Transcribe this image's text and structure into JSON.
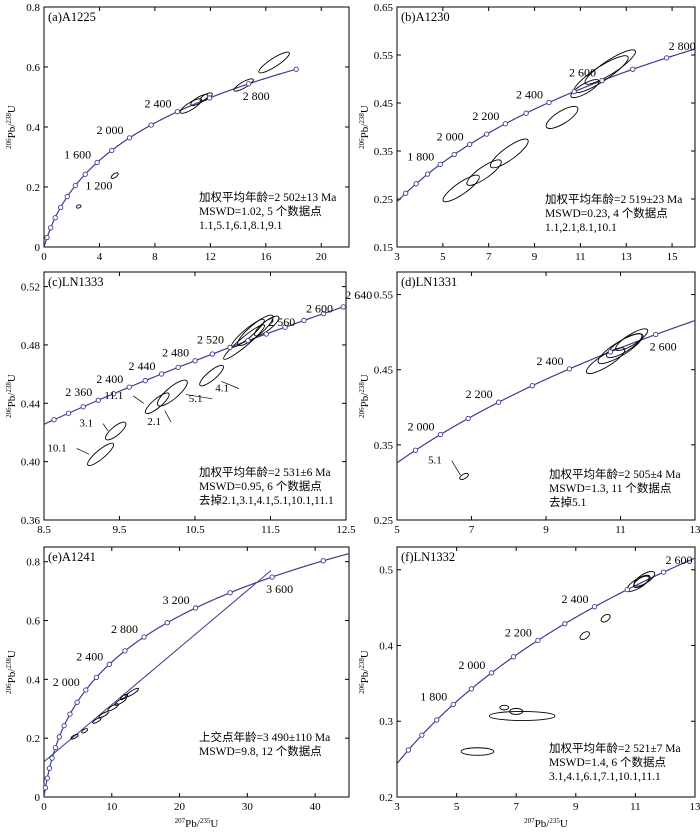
{
  "chart_data": [
    {
      "panel_label": "(a)A1225",
      "type": "scatter",
      "subtype": "concordia",
      "xlim": [
        0,
        22
      ],
      "ylim": [
        0,
        0.8
      ],
      "xticks": [
        0,
        4,
        8,
        12,
        16,
        20
      ],
      "yticks": [
        0,
        0.2,
        0.4,
        0.6,
        0.8
      ],
      "x_tick_labels": [
        "0",
        "4",
        "8",
        "12",
        "16",
        "20"
      ],
      "y_tick_labels": [
        "0",
        "0.2",
        "0.4",
        "0.6",
        "0.8"
      ],
      "age_min": 0,
      "age_max": 3000,
      "marker_step": 200,
      "age_labels": [
        {
          "age": 1200,
          "text": "1 200",
          "side": "right"
        },
        {
          "age": 1600,
          "text": "1 600",
          "side": "left"
        },
        {
          "age": 2000,
          "text": "2 000",
          "side": "left"
        },
        {
          "age": 2400,
          "text": "2 400",
          "side": "left"
        },
        {
          "age": 2800,
          "text": "2 800",
          "side": "below"
        }
      ],
      "ellipses": [
        {
          "x": 2.5,
          "y": 0.135,
          "rx": 0.18,
          "ry": 0.004,
          "angle": 18
        },
        {
          "x": 5.1,
          "y": 0.238,
          "rx": 0.3,
          "ry": 0.006,
          "angle": 35
        },
        {
          "x": 10.6,
          "y": 0.47,
          "rx": 0.9,
          "ry": 0.012,
          "angle": 32
        },
        {
          "x": 11.2,
          "y": 0.49,
          "rx": 0.7,
          "ry": 0.01,
          "angle": 30
        },
        {
          "x": 11.7,
          "y": 0.5,
          "rx": 0.5,
          "ry": 0.009,
          "angle": 30
        },
        {
          "x": 14.4,
          "y": 0.54,
          "rx": 0.8,
          "ry": 0.01,
          "angle": 30
        },
        {
          "x": 16.6,
          "y": 0.615,
          "rx": 1.3,
          "ry": 0.014,
          "angle": 33
        }
      ],
      "annotation": [
        "加权平均年龄=2 502±13 Ma",
        "MSWD=1.02, 5 个数据点",
        "1.1,5.1,6.1,8.1,9.1"
      ],
      "weighted_mean_age": "2 502±13 Ma",
      "mswd": 1.02,
      "n_points": 5
    },
    {
      "panel_label": "(b)A1230",
      "type": "scatter",
      "subtype": "concordia",
      "xlim": [
        3,
        16
      ],
      "ylim": [
        0.15,
        0.65
      ],
      "xticks": [
        3,
        5,
        7,
        9,
        11,
        13,
        15
      ],
      "yticks": [
        0.15,
        0.25,
        0.35,
        0.45,
        0.55,
        0.65
      ],
      "x_tick_labels": [
        "3",
        "5",
        "7",
        "9",
        "11",
        "13",
        "15"
      ],
      "y_tick_labels": [
        "0.15",
        "0.25",
        "0.35",
        "0.45",
        "0.55",
        "0.65"
      ],
      "age_min": 1300,
      "age_max": 2950,
      "marker_step": 100,
      "age_labels": [
        {
          "age": 1800,
          "text": "1 800",
          "side": "left"
        },
        {
          "age": 2000,
          "text": "2 000",
          "side": "left"
        },
        {
          "age": 2200,
          "text": "2 200",
          "side": "left"
        },
        {
          "age": 2400,
          "text": "2 400",
          "side": "left"
        },
        {
          "age": 2600,
          "text": "2 600",
          "side": "left"
        },
        {
          "age": 2800,
          "text": "2 800",
          "side": "above"
        }
      ],
      "ellipses": [
        {
          "x": 5.8,
          "y": 0.272,
          "rx": 0.95,
          "ry": 0.012,
          "angle": 35
        },
        {
          "x": 6.8,
          "y": 0.305,
          "rx": 0.9,
          "ry": 0.012,
          "angle": 35
        },
        {
          "x": 7.9,
          "y": 0.345,
          "rx": 1.0,
          "ry": 0.013,
          "angle": 36
        },
        {
          "x": 10.2,
          "y": 0.42,
          "rx": 0.8,
          "ry": 0.013,
          "angle": 32
        },
        {
          "x": 11.2,
          "y": 0.48,
          "rx": 0.7,
          "ry": 0.01,
          "angle": 30
        },
        {
          "x": 11.9,
          "y": 0.51,
          "rx": 1.4,
          "ry": 0.015,
          "angle": 33
        },
        {
          "x": 12.3,
          "y": 0.525,
          "rx": 1.3,
          "ry": 0.014,
          "angle": 33
        }
      ],
      "annotation": [
        "加权平均年龄=2 519±23 Ma",
        "MSWD=0.23, 4 个数据点",
        "1.1,2.1,8.1,10.1"
      ],
      "weighted_mean_age": "2 519±23 Ma",
      "mswd": 0.23,
      "n_points": 4
    },
    {
      "panel_label": "(c)LN1333",
      "type": "scatter",
      "subtype": "concordia",
      "xlim": [
        8.5,
        12.5
      ],
      "ylim": [
        0.36,
        0.53
      ],
      "xticks": [
        8.5,
        9.5,
        10.5,
        11.5,
        12.5
      ],
      "yticks": [
        0.36,
        0.4,
        0.44,
        0.48,
        0.52
      ],
      "x_tick_labels": [
        "8.5",
        "9.5",
        "10.5",
        "11.5",
        "12.5"
      ],
      "y_tick_labels": [
        "0.36",
        "0.40",
        "0.44",
        "0.48",
        "0.52"
      ],
      "age_min": 2280,
      "age_max": 2700,
      "marker_step": 20,
      "age_labels": [
        {
          "age": 2360,
          "text": "2 360",
          "side": "left"
        },
        {
          "age": 2400,
          "text": "2 400",
          "side": "left"
        },
        {
          "age": 2440,
          "text": "2 440",
          "side": "left"
        },
        {
          "age": 2480,
          "text": "2 480",
          "side": "left"
        },
        {
          "age": 2520,
          "text": "2 520",
          "side": "left"
        },
        {
          "age": 2560,
          "text": "2 560",
          "side": "above"
        },
        {
          "age": 2600,
          "text": "2 600",
          "side": "above"
        },
        {
          "age": 2640,
          "text": "2 640",
          "side": "above"
        }
      ],
      "ellipses": [
        {
          "x": 9.25,
          "y": 0.405,
          "rx": 0.22,
          "ry": 0.003,
          "angle": 40
        },
        {
          "x": 9.45,
          "y": 0.421,
          "rx": 0.17,
          "ry": 0.003,
          "angle": 40
        },
        {
          "x": 10.0,
          "y": 0.44,
          "rx": 0.2,
          "ry": 0.003,
          "angle": 40
        },
        {
          "x": 10.2,
          "y": 0.447,
          "rx": 0.25,
          "ry": 0.004,
          "angle": 40
        },
        {
          "x": 10.72,
          "y": 0.459,
          "rx": 0.2,
          "ry": 0.003,
          "angle": 40
        },
        {
          "x": 11.15,
          "y": 0.482,
          "rx": 0.35,
          "ry": 0.003,
          "angle": 40
        },
        {
          "x": 11.2,
          "y": 0.488,
          "rx": 0.28,
          "ry": 0.003,
          "angle": 40
        },
        {
          "x": 11.3,
          "y": 0.49,
          "rx": 0.3,
          "ry": 0.004,
          "angle": 40
        },
        {
          "x": 11.45,
          "y": 0.493,
          "rx": 0.2,
          "ry": 0.003,
          "angle": 38
        }
      ],
      "point_labels": [
        {
          "text": "10.1",
          "tx": 8.8,
          "ty": 0.407,
          "lx": 9.1,
          "ly": 0.405
        },
        {
          "text": "3.1",
          "tx": 9.15,
          "ty": 0.424,
          "lx": 9.35,
          "ly": 0.421
        },
        {
          "text": "11.1",
          "tx": 9.55,
          "ty": 0.443,
          "lx": 9.82,
          "ly": 0.44
        },
        {
          "text": "2.1",
          "tx": 10.05,
          "ty": 0.425,
          "lx": 10.1,
          "ly": 0.435
        },
        {
          "text": "5.1",
          "tx": 10.6,
          "ty": 0.441,
          "lx": 10.38,
          "ly": 0.446
        },
        {
          "text": "4.1",
          "tx": 10.95,
          "ty": 0.448,
          "lx": 10.85,
          "ly": 0.455
        }
      ],
      "annotation": [
        "加权平均年龄=2 531±6 Ma",
        "MSWD=0.95, 6 个数据点",
        "去掉2.1,3.1,4.1,5.1,10.1,11.1"
      ],
      "weighted_mean_age": "2 531±6 Ma",
      "mswd": 0.95,
      "n_points": 6
    },
    {
      "panel_label": "(d)LN1331",
      "type": "scatter",
      "subtype": "concordia",
      "xlim": [
        5,
        13
      ],
      "ylim": [
        0.25,
        0.58
      ],
      "xticks": [
        5,
        7,
        9,
        11,
        13
      ],
      "yticks": [
        0.25,
        0.35,
        0.45,
        0.55
      ],
      "x_tick_labels": [
        "5",
        "7",
        "9",
        "11",
        "13"
      ],
      "y_tick_labels": [
        "0.25",
        "0.35",
        "0.45",
        "0.55"
      ],
      "age_min": 1750,
      "age_max": 2800,
      "marker_step": 100,
      "age_labels": [
        {
          "age": 2000,
          "text": "2 000",
          "side": "left"
        },
        {
          "age": 2200,
          "text": "2 200",
          "side": "left"
        },
        {
          "age": 2400,
          "text": "2 400",
          "side": "left"
        },
        {
          "age": 2600,
          "text": "2 600",
          "side": "below"
        }
      ],
      "ellipses": [
        {
          "x": 6.8,
          "y": 0.308,
          "rx": 0.13,
          "ry": 0.003,
          "angle": 30
        },
        {
          "x": 10.6,
          "y": 0.462,
          "rx": 0.6,
          "ry": 0.008,
          "angle": 32
        },
        {
          "x": 11.0,
          "y": 0.478,
          "rx": 0.7,
          "ry": 0.009,
          "angle": 32
        },
        {
          "x": 11.1,
          "y": 0.482,
          "rx": 0.55,
          "ry": 0.008,
          "angle": 32
        },
        {
          "x": 11.3,
          "y": 0.49,
          "rx": 0.5,
          "ry": 0.007,
          "angle": 32
        }
      ],
      "point_labels": [
        {
          "text": "5.1",
          "tx": 6.2,
          "ty": 0.325,
          "lx": 6.7,
          "ly": 0.31
        }
      ],
      "annotation": [
        "加权平均年龄=2 505±4 Ma",
        "MSWD=1.3, 11 个数据点",
        "去掉5.1"
      ],
      "weighted_mean_age": "2 505±4 Ma",
      "mswd": 1.3,
      "n_points": 11
    },
    {
      "panel_label": "(e)A1241",
      "type": "scatter",
      "subtype": "concordia",
      "xlim": [
        0,
        45
      ],
      "ylim": [
        0,
        0.85
      ],
      "xticks": [
        0,
        10,
        20,
        30,
        40
      ],
      "yticks": [
        0,
        0.2,
        0.4,
        0.6,
        0.8
      ],
      "x_tick_labels": [
        "0",
        "10",
        "20",
        "30",
        "40"
      ],
      "y_tick_labels": [
        "0",
        "0.2",
        "0.4",
        "0.6",
        "0.8"
      ],
      "age_min": 0,
      "age_max": 4100,
      "marker_step": 200,
      "age_labels": [
        {
          "age": 2000,
          "text": "2 000",
          "side": "left"
        },
        {
          "age": 2400,
          "text": "2 400",
          "side": "left"
        },
        {
          "age": 2800,
          "text": "2 800",
          "side": "left"
        },
        {
          "age": 3200,
          "text": "3 200",
          "side": "left"
        },
        {
          "age": 3600,
          "text": "3 600",
          "side": "below"
        }
      ],
      "discordia": [
        [
          0,
          0.12
        ],
        [
          33.5,
          0.77
        ]
      ],
      "ellipses": [
        {
          "x": 4.5,
          "y": 0.205,
          "rx": 0.6,
          "ry": 0.004,
          "angle": 30
        },
        {
          "x": 6.0,
          "y": 0.225,
          "rx": 0.5,
          "ry": 0.004,
          "angle": 30
        },
        {
          "x": 7.8,
          "y": 0.26,
          "rx": 0.7,
          "ry": 0.005,
          "angle": 30
        },
        {
          "x": 8.8,
          "y": 0.28,
          "rx": 0.8,
          "ry": 0.005,
          "angle": 30
        },
        {
          "x": 10.2,
          "y": 0.305,
          "rx": 0.9,
          "ry": 0.006,
          "angle": 32
        },
        {
          "x": 11.3,
          "y": 0.325,
          "rx": 1.0,
          "ry": 0.006,
          "angle": 32
        },
        {
          "x": 13.0,
          "y": 0.355,
          "rx": 1.1,
          "ry": 0.006,
          "angle": 32
        },
        {
          "x": 11.8,
          "y": 0.34,
          "rx": 0.6,
          "ry": 0.005,
          "angle": 32
        }
      ],
      "annotation": [
        "上交点年龄=3 490±110 Ma",
        "MSWD=9.8, 12 个数据点"
      ],
      "upper_intercept_age": "3 490±110 Ma",
      "mswd": 9.8,
      "n_points": 12
    },
    {
      "panel_label": "(f)LN1332",
      "type": "scatter",
      "subtype": "concordia",
      "xlim": [
        3,
        13
      ],
      "ylim": [
        0.2,
        0.53
      ],
      "xticks": [
        3,
        5,
        7,
        9,
        11,
        13
      ],
      "yticks": [
        0.2,
        0.3,
        0.4,
        0.5
      ],
      "x_tick_labels": [
        "3",
        "5",
        "7",
        "9",
        "11",
        "13"
      ],
      "y_tick_labels": [
        "0.2",
        "0.3",
        "0.4",
        "0.5"
      ],
      "age_min": 1380,
      "age_max": 2750,
      "marker_step": 100,
      "age_labels": [
        {
          "age": 1800,
          "text": "1 800",
          "side": "left"
        },
        {
          "age": 2000,
          "text": "2 000",
          "side": "left"
        },
        {
          "age": 2200,
          "text": "2 200",
          "side": "left"
        },
        {
          "age": 2400,
          "text": "2 400",
          "side": "left"
        },
        {
          "age": 2600,
          "text": "2 600",
          "side": "above"
        }
      ],
      "ellipses": [
        {
          "x": 5.7,
          "y": 0.26,
          "rx": 0.55,
          "ry": 0.005,
          "angle": 0
        },
        {
          "x": 7.2,
          "y": 0.307,
          "rx": 1.1,
          "ry": 0.006,
          "angle": 0
        },
        {
          "x": 6.6,
          "y": 0.318,
          "rx": 0.15,
          "ry": 0.003,
          "angle": 0
        },
        {
          "x": 7.0,
          "y": 0.313,
          "rx": 0.22,
          "ry": 0.004,
          "angle": 0
        },
        {
          "x": 9.3,
          "y": 0.413,
          "rx": 0.18,
          "ry": 0.004,
          "angle": 35
        },
        {
          "x": 10.0,
          "y": 0.436,
          "rx": 0.17,
          "ry": 0.004,
          "angle": 35
        },
        {
          "x": 11.1,
          "y": 0.482,
          "rx": 0.45,
          "ry": 0.006,
          "angle": 32
        },
        {
          "x": 11.3,
          "y": 0.488,
          "rx": 0.4,
          "ry": 0.006,
          "angle": 32
        },
        {
          "x": 11.2,
          "y": 0.484,
          "rx": 0.3,
          "ry": 0.005,
          "angle": 32
        }
      ],
      "annotation": [
        "加权平均年龄=2 521±7 Ma",
        "MSWD=1.4, 6 个数据点",
        "3.1,4.1,6.1,7.1,10.1,11.1"
      ],
      "weighted_mean_age": "2 521±7 Ma",
      "mswd": 1.4,
      "n_points": 6
    }
  ],
  "axis_labels": {
    "y_main": "Pb/",
    "y_sup1": "206",
    "y_sup2": "238",
    "y_tail": "U",
    "x_main": "Pb/",
    "x_sup1": "207",
    "x_sup2": "235",
    "x_tail": "U"
  },
  "colors": {
    "concordia": "#3a3f8f",
    "ellipse": "#000000"
  }
}
